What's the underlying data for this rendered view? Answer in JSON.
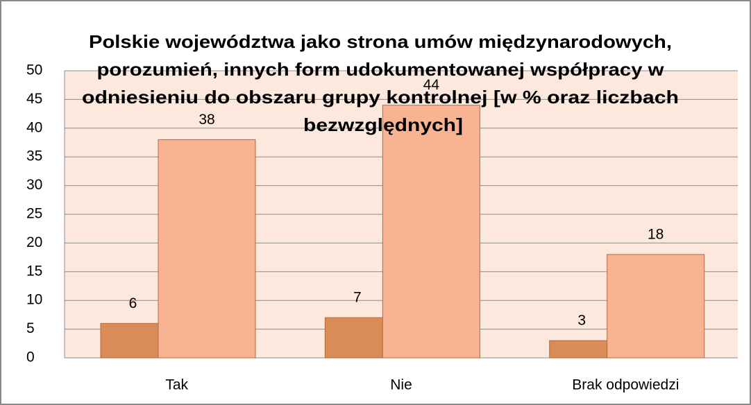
{
  "chart_data": {
    "type": "bar",
    "title": [
      "Polskie województwa jako strona umów międzynarodowych,",
      "porozumień, innych form udokumentowanej współpracy w",
      "odniesieniu do obszaru grupy kontrolnej [w % oraz liczbach",
      "bezwzględnych]"
    ],
    "categories": [
      "Tak",
      "Nie",
      "Brak odpowiedzi"
    ],
    "series": [
      {
        "color": "#d98b58",
        "values": [
          6,
          7,
          3
        ]
      },
      {
        "color": "#f8b393",
        "values": [
          38,
          44,
          18
        ]
      }
    ],
    "ylim": [
      0,
      50
    ],
    "yticks": [
      0,
      5,
      10,
      15,
      20,
      25,
      30,
      35,
      40,
      45,
      50
    ],
    "grid": true
  }
}
